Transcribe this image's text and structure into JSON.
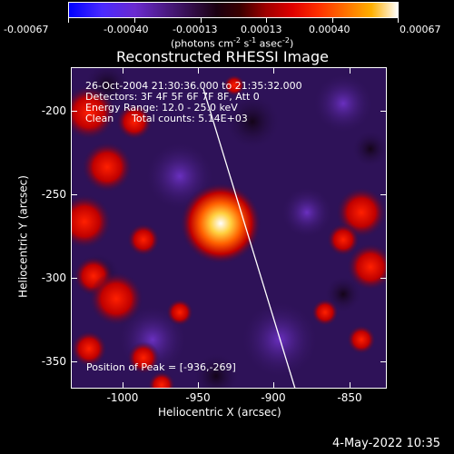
{
  "colorbar": {
    "ticks": [
      "-0.00067",
      "-0.00040",
      "-0.00013",
      "0.00013",
      "0.00040",
      "0.00067"
    ],
    "unit_label": "(photons cm",
    "unit_sup1": "-2",
    "unit_mid1": " s",
    "unit_sup2": "-1",
    "unit_mid2": " asec",
    "unit_sup3": "-2",
    "unit_end": ")"
  },
  "title": "Reconstructed RHESSI Image",
  "info": {
    "line1": "26-Oct-2004 21:30:36.000 to 21:35:32.000",
    "line2": "Detectors: 3F 4F 5F 6F 7F 8F, Att 0",
    "line3": "Energy Range: 12.0 - 25.0 keV",
    "line4_a": "Clean",
    "line4_b": "Total counts: 5.14E+03"
  },
  "peak": {
    "label": "Position of Peak = ",
    "value": "[-936,-269]"
  },
  "axes": {
    "xlabel": "Heliocentric X (arcsec)",
    "ylabel": "Heliocentric Y (arcsec)",
    "xticks": [
      "-1000",
      "-950",
      "-900",
      "-850"
    ],
    "yticks": [
      "-200",
      "-250",
      "-300",
      "-350"
    ],
    "xlim": [
      -1032,
      -822
    ],
    "ylim": [
      -374,
      -163
    ]
  },
  "timestamp": "4-May-2022 10:35"
}
